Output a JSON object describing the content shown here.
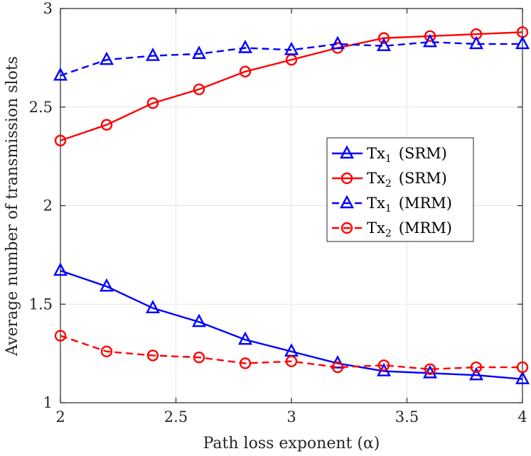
{
  "chart_data": {
    "type": "line",
    "title": "",
    "xlabel": "Path loss exponent (α)",
    "ylabel": "Average number of transmission slots",
    "xlim": [
      2,
      4
    ],
    "ylim": [
      1,
      3
    ],
    "xticks": [
      "2",
      "2.5",
      "3",
      "3.5",
      "4"
    ],
    "yticks": [
      "1",
      "1.5",
      "2",
      "2.5",
      "3"
    ],
    "grid": true,
    "legend_position": "center-right",
    "x": [
      2.0,
      2.2,
      2.4,
      2.6,
      2.8,
      3.0,
      3.2,
      3.4,
      3.6,
      3.8,
      4.0
    ],
    "series": [
      {
        "name": "Tx1 (SRM)",
        "name_main": "Tx",
        "name_sub": "1",
        "name_suffix": "(SRM)",
        "color": "#0000ff",
        "marker": "triangle",
        "line_style": "solid",
        "values": [
          1.67,
          1.59,
          1.48,
          1.41,
          1.32,
          1.26,
          1.2,
          1.16,
          1.15,
          1.14,
          1.12
        ]
      },
      {
        "name": "Tx2 (SRM)",
        "name_main": "Tx",
        "name_sub": "2",
        "name_suffix": "(SRM)",
        "color": "#ff0000",
        "marker": "circle",
        "line_style": "solid",
        "values": [
          2.33,
          2.41,
          2.52,
          2.59,
          2.68,
          2.74,
          2.8,
          2.85,
          2.86,
          2.87,
          2.88
        ]
      },
      {
        "name": "Tx1 (MRM)",
        "name_main": "Tx",
        "name_sub": "1",
        "name_suffix": "(MRM)",
        "color": "#0000ff",
        "marker": "triangle",
        "line_style": "dashed",
        "values": [
          2.66,
          2.74,
          2.76,
          2.77,
          2.8,
          2.79,
          2.82,
          2.81,
          2.83,
          2.82,
          2.82
        ]
      },
      {
        "name": "Tx2 (MRM)",
        "name_main": "Tx",
        "name_sub": "2",
        "name_suffix": "(MRM)",
        "color": "#ff0000",
        "marker": "circle",
        "line_style": "dashed",
        "values": [
          1.34,
          1.26,
          1.24,
          1.23,
          1.2,
          1.21,
          1.18,
          1.19,
          1.17,
          1.18,
          1.18
        ]
      }
    ]
  }
}
